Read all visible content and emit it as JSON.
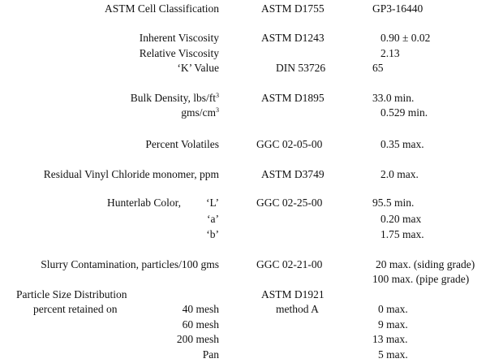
{
  "rows": {
    "cell_class": {
      "label": "ASTM Cell Classification",
      "method": "ASTM D1755",
      "value": "GP3-16440"
    },
    "inherent_viscosity": {
      "label": "Inherent Viscosity",
      "method": "ASTM D1243",
      "value": "0.90 ± 0.02"
    },
    "relative_viscosity": {
      "label": "Relative Viscosity",
      "value": "2.13"
    },
    "k_value": {
      "label": "‘K’ Value",
      "method": "DIN 53726",
      "value": "65"
    },
    "bulk_density": {
      "label": "Bulk Density, lbs/ft",
      "label_sup": "3",
      "method": "ASTM D1895",
      "value": "33.0 min."
    },
    "bulk_density_gms": {
      "label": "gms/cm",
      "label_sup": "3",
      "value": "0.529 min."
    },
    "volatiles": {
      "label": "Percent Volatiles",
      "method": "GGC 02-05-00",
      "value": "0.35 max."
    },
    "rvcm": {
      "label": "Residual Vinyl Chloride monomer, ppm",
      "method": "ASTM D3749",
      "value": "2.0 max."
    },
    "color_l": {
      "label": "Hunterlab Color,",
      "sub": "‘L’",
      "method": "GGC 02-25-00",
      "value": "95.5 min."
    },
    "color_a": {
      "sub": "‘a’",
      "value": "0.20 max"
    },
    "color_b": {
      "sub": "‘b’",
      "value": "1.75 max."
    },
    "slurry": {
      "label": "Slurry Contamination, particles/100 gms",
      "method": "GGC 02-21-00",
      "value": "20 max. (siding grade)",
      "value2": "100 max. (pipe grade)"
    },
    "psd": {
      "label": "Particle Size Distribution",
      "method": "ASTM D1921"
    },
    "psd_40": {
      "label": "percent retained on",
      "sub": "40 mesh",
      "method": "method A",
      "value": "0 max."
    },
    "psd_60": {
      "sub": "60 mesh",
      "value": "9 max."
    },
    "psd_200": {
      "sub": "200 mesh",
      "value": "13 max."
    },
    "psd_pan": {
      "sub": "Pan",
      "value": "5 max."
    }
  }
}
